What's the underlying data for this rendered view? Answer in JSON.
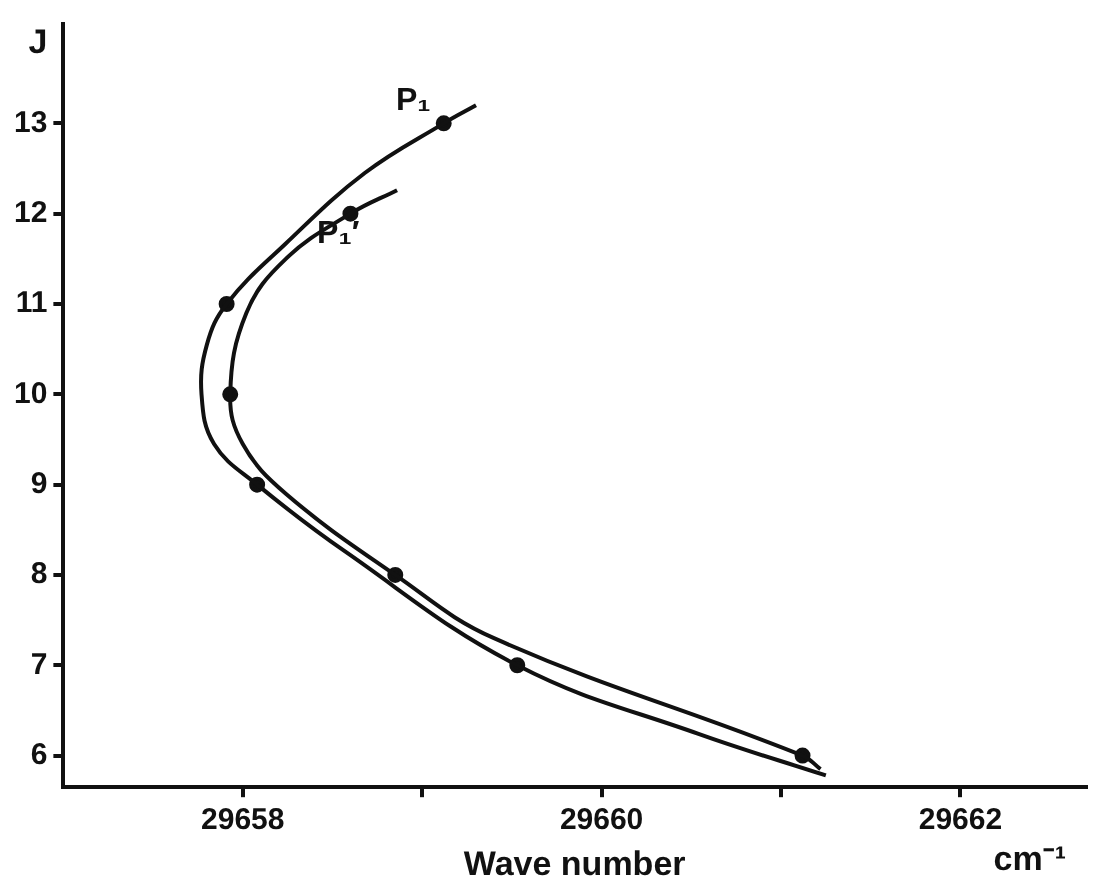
{
  "chart_data": {
    "type": "scatter",
    "xlabel": "Wave number",
    "ylabel": "J",
    "annotations": [
      "cm⁻¹"
    ],
    "xlim": [
      29657,
      29662.7
    ],
    "xticks": [
      29658,
      {
        "value": 29659,
        "label": null
      },
      29660,
      {
        "value": 29661,
        "label": null
      },
      29662
    ],
    "ylim": [
      5.65,
      14.1
    ],
    "yticks": [
      6,
      7,
      8,
      9,
      10,
      11,
      12,
      13
    ],
    "grid": false,
    "legend": false,
    "series": [
      {
        "type": "line",
        "name": "P₁",
        "color": "#111111",
        "marker": "none",
        "x": [
          29659.3,
          29659.12,
          29658.68,
          29658.24,
          29657.91,
          29657.8,
          29657.77,
          29657.84,
          29658.08,
          29658.57,
          29659.53,
          29660.54,
          29661.25
        ],
        "values": [
          13.2,
          13,
          12.45,
          11.67,
          11,
          10.55,
          10,
          9.45,
          9,
          8.26,
          7,
          6.24,
          5.78
        ]
      },
      {
        "type": "line",
        "name": "P₁′",
        "color": "#111111",
        "marker": "none",
        "x": [
          29658.86,
          29658.6,
          29658.24,
          29658.02,
          29657.93,
          29658.0,
          29658.24,
          29658.85,
          29659.4,
          29661.12,
          29661.22
        ],
        "values": [
          12.26,
          12,
          11.5,
          10.9,
          10,
          9.45,
          8.9,
          8,
          7.3,
          6,
          5.85
        ]
      },
      {
        "color": "#111111",
        "marker": "circle",
        "x": [
          29659.12,
          29657.91,
          29658.08,
          29659.53
        ],
        "values": [
          13,
          11,
          9,
          7
        ]
      },
      {
        "color": "#111111",
        "marker": "circle",
        "x": [
          29658.6,
          29657.93,
          29658.85,
          29661.12
        ],
        "values": [
          12,
          10,
          8,
          6
        ]
      }
    ]
  }
}
